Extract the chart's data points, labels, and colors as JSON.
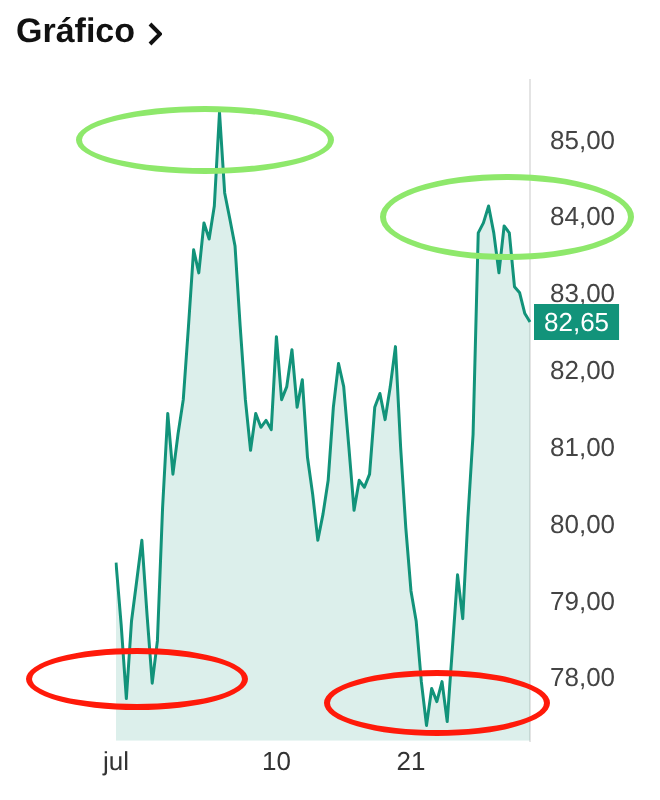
{
  "chart_data": {
    "type": "area",
    "title": "Gráfico",
    "categories": [
      "jul",
      null,
      null,
      null,
      null,
      null,
      null,
      null,
      null,
      null,
      null,
      null,
      null,
      null,
      null,
      null,
      null,
      null,
      null,
      null,
      null,
      null,
      null,
      null,
      null,
      null,
      null,
      null,
      null,
      null,
      null,
      "10",
      null,
      null,
      null,
      null,
      null,
      null,
      null,
      null,
      null,
      null,
      null,
      null,
      null,
      null,
      null,
      null,
      null,
      null,
      null,
      null,
      null,
      null,
      null,
      null,
      null,
      "21",
      null,
      null,
      null,
      null,
      null,
      null,
      null,
      null,
      null,
      null,
      null,
      null,
      null,
      null,
      null,
      null,
      null,
      null,
      null,
      null,
      null,
      null,
      null
    ],
    "series": [
      {
        "color": "#12937a",
        "values": [
          79.52,
          78.71,
          77.75,
          78.76,
          79.28,
          79.81,
          78.84,
          77.95,
          78.5,
          80.23,
          81.46,
          80.67,
          81.2,
          81.64,
          82.59,
          83.59,
          83.29,
          83.94,
          83.73,
          84.16,
          85.38,
          84.33,
          83.99,
          83.64,
          82.59,
          81.64,
          80.98,
          81.46,
          81.28,
          81.37,
          81.25,
          82.46,
          81.64,
          81.81,
          82.29,
          81.54,
          81.9,
          80.89,
          80.41,
          79.81,
          80.15,
          80.59,
          81.54,
          82.11,
          81.81,
          81.02,
          80.2,
          80.59,
          80.5,
          80.67,
          81.54,
          81.72,
          81.38,
          81.81,
          82.33,
          81.02,
          79.97,
          79.15,
          78.76,
          77.97,
          77.4,
          77.88,
          77.71,
          77.97,
          77.45,
          78.4,
          79.36,
          78.79,
          80.1,
          81.19,
          83.81,
          83.94,
          84.16,
          83.81,
          83.29,
          83.9,
          83.81,
          83.11,
          83.03,
          82.76,
          82.65
        ]
      }
    ],
    "annotations": [
      "82,65"
    ],
    "ylim": [
      77.2,
      85.8
    ],
    "yticks": [
      {
        "value": 78,
        "label": "78,00"
      },
      {
        "value": 79,
        "label": "79,00"
      },
      {
        "value": 80,
        "label": "80,00"
      },
      {
        "value": 81,
        "label": "81,00"
      },
      {
        "value": 82,
        "label": "82,00"
      },
      {
        "value": 83,
        "label": "83,00"
      },
      {
        "value": 84,
        "label": "84,00"
      },
      {
        "value": 85,
        "label": "85,00"
      }
    ],
    "grid": false,
    "legend": false
  }
}
